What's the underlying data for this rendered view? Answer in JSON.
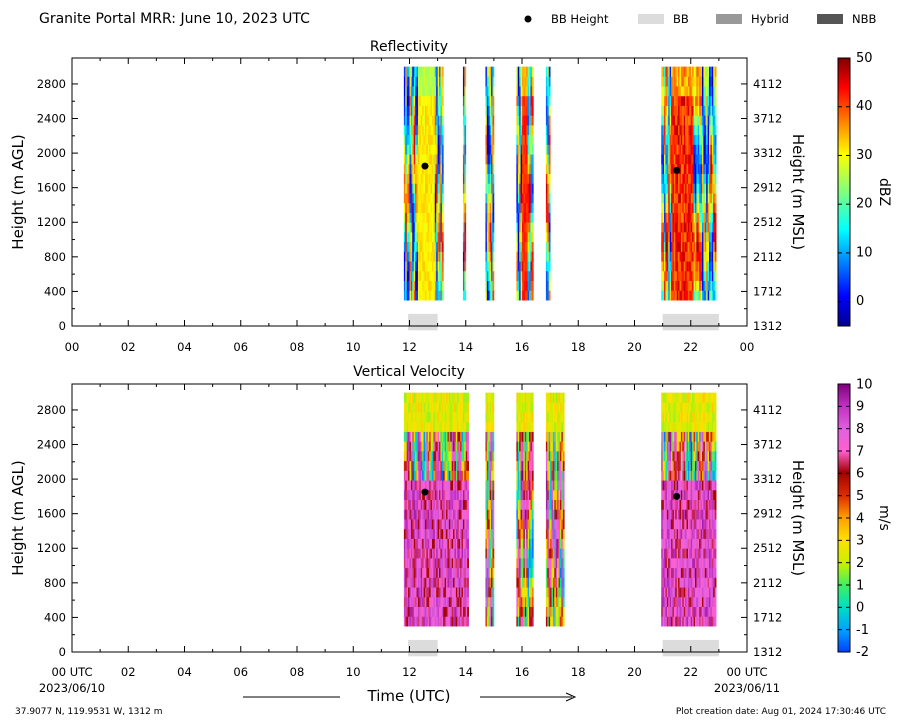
{
  "header": {
    "title": "Granite Portal MRR:  June 10, 2023 UTC",
    "legend": [
      {
        "label": "BB Height",
        "kind": "dot",
        "color": "#000000"
      },
      {
        "label": "BB",
        "kind": "rect",
        "color": "#dcdcdc"
      },
      {
        "label": "Hybrid",
        "kind": "rect",
        "color": "#999999"
      },
      {
        "label": "NBB",
        "kind": "rect",
        "color": "#555555"
      }
    ]
  },
  "footer": {
    "location": "37.9077 N, 119.9531 W, 1312 m",
    "creation": "Plot creation date: Aug 01, 2024 17:30:46 UTC",
    "xlabel": "Time (UTC)",
    "start_date": "2023/06/10",
    "end_date": "2023/06/11"
  },
  "chart_data": [
    {
      "type": "heatmap",
      "title": "Reflectivity",
      "ylabel": "Height (m AGL)",
      "y2label": "Height (m MSL)",
      "xlim": [
        0,
        24
      ],
      "ylim": [
        0,
        3100
      ],
      "xticks": [
        "00",
        "02",
        "04",
        "06",
        "08",
        "10",
        "12",
        "14",
        "16",
        "18",
        "20",
        "22",
        "00"
      ],
      "yticks": [
        0,
        400,
        800,
        1200,
        1600,
        2000,
        2400,
        2800
      ],
      "y2ticks": [
        "1312",
        "1712",
        "2112",
        "2512",
        "2912",
        "3312",
        "3712",
        "4112"
      ],
      "colorbar": {
        "label": "dBZ",
        "min": -5,
        "max": 50,
        "ticks": [
          0,
          10,
          20,
          30,
          40,
          50
        ],
        "colormap": "jet"
      },
      "data_range": {
        "y": [
          300,
          3000
        ]
      },
      "segments": [
        {
          "t0": 11.8,
          "t1": 13.2
        },
        {
          "t0": 13.9,
          "t1": 14.0
        },
        {
          "t0": 14.7,
          "t1": 15.0
        },
        {
          "t0": 15.8,
          "t1": 16.4
        },
        {
          "t0": 16.85,
          "t1": 17.0
        },
        {
          "t0": 20.95,
          "t1": 22.9
        }
      ],
      "bb_height_points": [
        {
          "x": 12.55,
          "y": 1850
        },
        {
          "x": 21.5,
          "y": 1800
        }
      ],
      "bb_bars": [
        {
          "t0": 11.95,
          "t1": 13.0,
          "kind": "BB"
        },
        {
          "t0": 21.0,
          "t1": 23.0,
          "kind": "BB"
        }
      ]
    },
    {
      "type": "heatmap",
      "title": "Vertical Velocity",
      "ylabel": "Height (m AGL)",
      "y2label": "Height (m MSL)",
      "xlim": [
        0,
        24
      ],
      "ylim": [
        0,
        3100
      ],
      "xticks": [
        "00 UTC",
        "02",
        "04",
        "06",
        "08",
        "10",
        "12",
        "14",
        "16",
        "18",
        "20",
        "22",
        "00 UTC"
      ],
      "yticks": [
        0,
        400,
        800,
        1200,
        1600,
        2000,
        2400,
        2800
      ],
      "y2ticks": [
        "1312",
        "1712",
        "2112",
        "2512",
        "2912",
        "3312",
        "3712",
        "4112"
      ],
      "colorbar": {
        "label": "m/s",
        "min": -2,
        "max": 10,
        "ticks": [
          -2,
          -1,
          0,
          1,
          2,
          3,
          4,
          5,
          6,
          7,
          8,
          9,
          10
        ],
        "colormap": "velocity"
      },
      "data_range": {
        "y": [
          300,
          3000
        ]
      },
      "segments": [
        {
          "t0": 11.8,
          "t1": 14.1
        },
        {
          "t0": 14.7,
          "t1": 15.0
        },
        {
          "t0": 15.8,
          "t1": 16.4
        },
        {
          "t0": 16.85,
          "t1": 17.5
        },
        {
          "t0": 20.95,
          "t1": 22.9
        }
      ],
      "bb_height_points": [
        {
          "x": 12.55,
          "y": 1850
        },
        {
          "x": 21.5,
          "y": 1800
        }
      ],
      "bb_bars": [
        {
          "t0": 11.95,
          "t1": 13.0,
          "kind": "BB"
        },
        {
          "t0": 21.0,
          "t1": 23.0,
          "kind": "BB"
        }
      ]
    }
  ]
}
